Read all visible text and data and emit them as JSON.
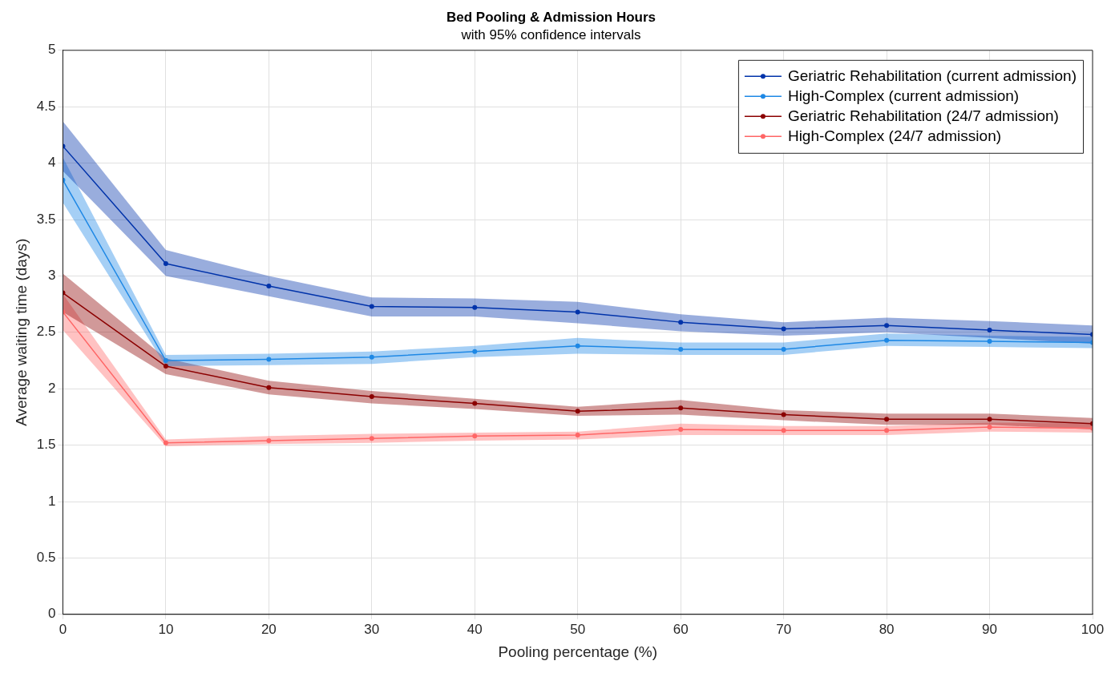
{
  "chart_data": {
    "type": "line",
    "title": "Bed Pooling & Admission Hours",
    "subtitle": "with 95% confidence intervals",
    "xlabel": "Pooling percentage (%)",
    "ylabel": "Average waiting time (days)",
    "x": [
      0,
      10,
      20,
      30,
      40,
      50,
      60,
      70,
      80,
      90,
      100
    ],
    "series": [
      {
        "name": "Geriatric Rehabilitation (current admission)",
        "color": "#0033aa",
        "values": [
          4.15,
          3.11,
          2.91,
          2.73,
          2.72,
          2.68,
          2.59,
          2.53,
          2.56,
          2.52,
          2.48
        ],
        "lower": [
          3.93,
          3.0,
          2.82,
          2.64,
          2.64,
          2.58,
          2.51,
          2.47,
          2.5,
          2.45,
          2.4
        ],
        "upper": [
          4.37,
          3.23,
          3.0,
          2.81,
          2.8,
          2.77,
          2.66,
          2.59,
          2.63,
          2.6,
          2.56
        ]
      },
      {
        "name": "High-Complex (current admission)",
        "color": "#1e88e5",
        "values": [
          3.85,
          2.25,
          2.26,
          2.28,
          2.33,
          2.38,
          2.35,
          2.35,
          2.43,
          2.42,
          2.41
        ],
        "lower": [
          3.65,
          2.2,
          2.21,
          2.22,
          2.28,
          2.31,
          2.3,
          2.3,
          2.38,
          2.37,
          2.36
        ],
        "upper": [
          4.05,
          2.3,
          2.31,
          2.33,
          2.38,
          2.45,
          2.41,
          2.41,
          2.49,
          2.47,
          2.46
        ]
      },
      {
        "name": "Geriatric Rehabilitation (24/7 admission)",
        "color": "#8b0000",
        "values": [
          2.85,
          2.2,
          2.01,
          1.93,
          1.87,
          1.8,
          1.83,
          1.77,
          1.73,
          1.73,
          1.69
        ],
        "lower": [
          2.68,
          2.13,
          1.95,
          1.87,
          1.82,
          1.76,
          1.77,
          1.72,
          1.68,
          1.68,
          1.64
        ],
        "upper": [
          3.02,
          2.27,
          2.07,
          1.98,
          1.91,
          1.84,
          1.9,
          1.81,
          1.78,
          1.78,
          1.74
        ]
      },
      {
        "name": "High-Complex (24/7 admission)",
        "color": "#ff6666",
        "values": [
          2.68,
          1.52,
          1.54,
          1.56,
          1.58,
          1.59,
          1.64,
          1.63,
          1.63,
          1.66,
          1.65
        ],
        "lower": [
          2.52,
          1.49,
          1.51,
          1.52,
          1.54,
          1.55,
          1.59,
          1.59,
          1.59,
          1.62,
          1.61
        ],
        "upper": [
          2.84,
          1.55,
          1.58,
          1.6,
          1.61,
          1.62,
          1.69,
          1.67,
          1.67,
          1.7,
          1.69
        ]
      }
    ],
    "xlim": [
      0,
      100
    ],
    "xticks": [
      0,
      10,
      20,
      30,
      40,
      50,
      60,
      70,
      80,
      90,
      100
    ],
    "ylim": [
      0,
      5
    ],
    "yticks": [
      0,
      0.5,
      1,
      1.5,
      2,
      2.5,
      3,
      3.5,
      4,
      4.5,
      5
    ],
    "grid": true,
    "legend": "top right",
    "marker": "circle",
    "line_style": "solid"
  }
}
